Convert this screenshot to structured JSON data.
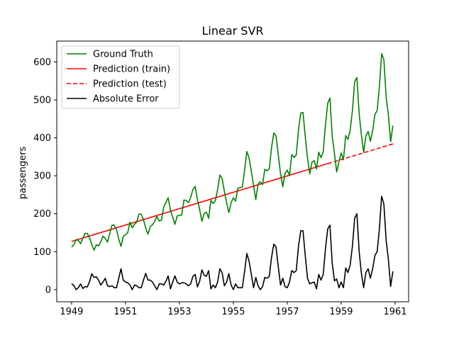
{
  "chart_data": {
    "type": "line",
    "title": "Linear SVR",
    "xlabel": "",
    "ylabel": "passengers",
    "xlim": [
      1948.45,
      1961.5
    ],
    "ylim": [
      -32,
      655
    ],
    "x_ticks": [
      1949,
      1951,
      1953,
      1955,
      1957,
      1959,
      1961
    ],
    "x_tick_labels": [
      "1949",
      "1951",
      "1953",
      "1955",
      "1957",
      "1959",
      "1961"
    ],
    "y_ticks": [
      0,
      100,
      200,
      300,
      400,
      500,
      600
    ],
    "y_tick_labels": [
      "0",
      "100",
      "200",
      "300",
      "400",
      "500",
      "600"
    ],
    "legend_position": "top-left",
    "legend": [
      "Ground Truth",
      "Prediction (train)",
      "Prediction (test)",
      "Absolute Error"
    ],
    "x_start": 1949.0,
    "x_step": 0.0833333,
    "series": [
      {
        "name": "Ground Truth",
        "color": "#008000",
        "style": "solid",
        "values": [
          112,
          118,
          132,
          129,
          121,
          135,
          148,
          148,
          136,
          119,
          104,
          118,
          115,
          126,
          141,
          135,
          125,
          149,
          170,
          170,
          158,
          133,
          114,
          140,
          145,
          150,
          178,
          163,
          172,
          178,
          199,
          199,
          184,
          162,
          146,
          166,
          171,
          180,
          193,
          181,
          183,
          218,
          230,
          242,
          209,
          191,
          172,
          194,
          196,
          196,
          236,
          235,
          229,
          243,
          264,
          272,
          237,
          211,
          180,
          201,
          204,
          188,
          235,
          227,
          234,
          264,
          302,
          293,
          259,
          229,
          203,
          229,
          242,
          233,
          267,
          269,
          270,
          315,
          364,
          347,
          312,
          274,
          237,
          278,
          284,
          277,
          317,
          313,
          318,
          374,
          413,
          405,
          355,
          306,
          271,
          306,
          315,
          301,
          356,
          348,
          355,
          422,
          465,
          467,
          404,
          347,
          305,
          336,
          340,
          318,
          362,
          348,
          363,
          435,
          491,
          505,
          404,
          359,
          310,
          337,
          360,
          342,
          406,
          396,
          420,
          472,
          548,
          559,
          463,
          407,
          362,
          405,
          417,
          391,
          419,
          461,
          472,
          535,
          622,
          606,
          508,
          461,
          390,
          432
        ]
      },
      {
        "name": "Prediction (train)",
        "color": "#ff0000",
        "style": "solid",
        "x_range": [
          1949.0,
          1958.5
        ],
        "y_range": [
          127,
          332
        ]
      },
      {
        "name": "Prediction (test)",
        "color": "#ff0000",
        "style": "dashed",
        "x_range": [
          1958.5,
          1960.92
        ],
        "y_range": [
          332,
          384
        ]
      },
      {
        "name": "Absolute Error",
        "color": "#000000",
        "style": "solid",
        "values": [
          15,
          11,
          0,
          5,
          15,
          3,
          8,
          7,
          21,
          42,
          32,
          34,
          25,
          12,
          20,
          30,
          10,
          8,
          10,
          5,
          5,
          30,
          55,
          25,
          20,
          18,
          12,
          0,
          12,
          10,
          5,
          5,
          25,
          43,
          25,
          25,
          20,
          10,
          0,
          15,
          15,
          12,
          22,
          36,
          2,
          20,
          36,
          20,
          15,
          18,
          18,
          15,
          10,
          15,
          35,
          40,
          7,
          22,
          52,
          38,
          35,
          50,
          2,
          12,
          5,
          20,
          55,
          45,
          10,
          20,
          42,
          12,
          0,
          15,
          5,
          5,
          5,
          48,
          95,
          75,
          40,
          5,
          32,
          10,
          0,
          8,
          32,
          30,
          35,
          85,
          120,
          112,
          60,
          12,
          30,
          8,
          5,
          20,
          50,
          45,
          50,
          115,
          155,
          155,
          90,
          30,
          15,
          18,
          20,
          2,
          40,
          25,
          40,
          108,
          160,
          170,
          70,
          23,
          28,
          5,
          20,
          5,
          57,
          45,
          65,
          115,
          188,
          200,
          100,
          42,
          5,
          45,
          55,
          30,
          55,
          90,
          100,
          160,
          246,
          225,
          130,
          80,
          8,
          48
        ]
      }
    ]
  }
}
